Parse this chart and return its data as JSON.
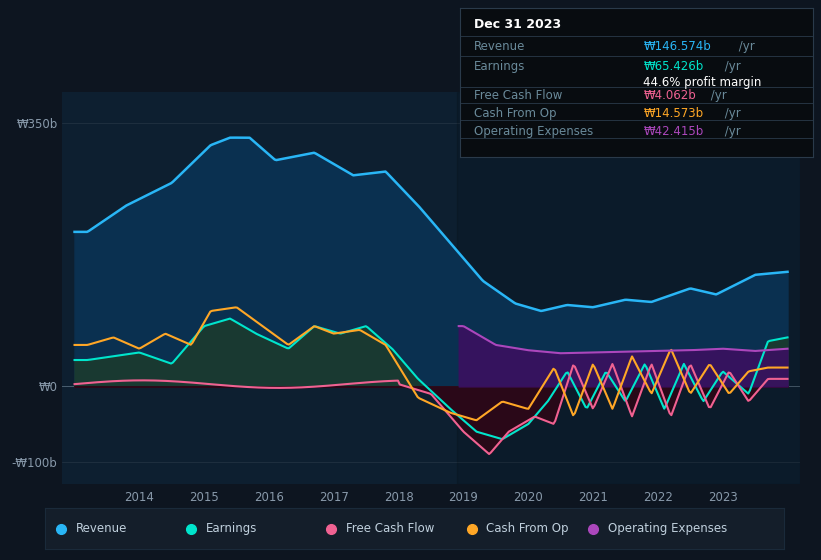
{
  "bg_color": "#0d1520",
  "plot_bg_color": "#0d1f30",
  "grid_color": "#253545",
  "zero_line_color": "#4a6070",
  "ylim": [
    -130,
    390
  ],
  "yticks": [
    -100,
    0,
    350
  ],
  "ytick_labels": [
    "-₩100b",
    "₩0",
    "₩350b"
  ],
  "xlim_start": 2012.8,
  "xlim_end": 2024.2,
  "xticks": [
    2014,
    2015,
    2016,
    2017,
    2018,
    2019,
    2020,
    2021,
    2022,
    2023
  ],
  "series_colors": {
    "revenue": "#29b6f6",
    "earnings": "#00e5cc",
    "fcf": "#f06292",
    "cashfromop": "#ffa726",
    "opex": "#ab47bc"
  },
  "fill_colors": {
    "revenue": "#0a3050",
    "earnings_pos": "#1a3a30",
    "earnings_neg": "#3a1020",
    "opex_fill": "#3a1060",
    "fcf_neg": "#2a0818"
  },
  "tooltip": {
    "date": "Dec 31 2023",
    "revenue_val": "₩146.574b",
    "earnings_val": "₩65.426b",
    "profit_margin": "44.6%",
    "fcf_val": "₩4.062b",
    "cashfromop_val": "₩14.573b",
    "opex_val": "₩42.415b"
  },
  "legend": [
    {
      "label": "Revenue",
      "color": "#29b6f6"
    },
    {
      "label": "Earnings",
      "color": "#00e5cc"
    },
    {
      "label": "Free Cash Flow",
      "color": "#f06292"
    },
    {
      "label": "Cash From Op",
      "color": "#ffa726"
    },
    {
      "label": "Operating Expenses",
      "color": "#ab47bc"
    }
  ]
}
